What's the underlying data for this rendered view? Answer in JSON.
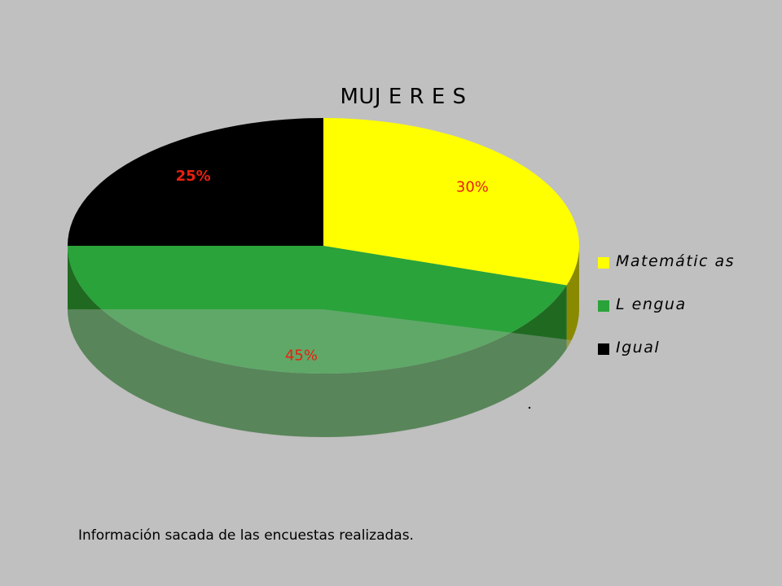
{
  "chart_data": {
    "type": "pie",
    "title": "MUJ E R E S",
    "categories": [
      "Matemátic as",
      "L engua",
      "Igual"
    ],
    "values": [
      30,
      45,
      25
    ],
    "labels": [
      "30%",
      "45%",
      "25%"
    ],
    "colors": [
      "#ffff00",
      "#2aa33a",
      "#000000"
    ],
    "label_colors": [
      "#e8200f",
      "#e8200f",
      "#e8200f"
    ],
    "legend_position": "right",
    "style": "3d"
  },
  "footnote": "Información sacada de las encuestas realizadas."
}
